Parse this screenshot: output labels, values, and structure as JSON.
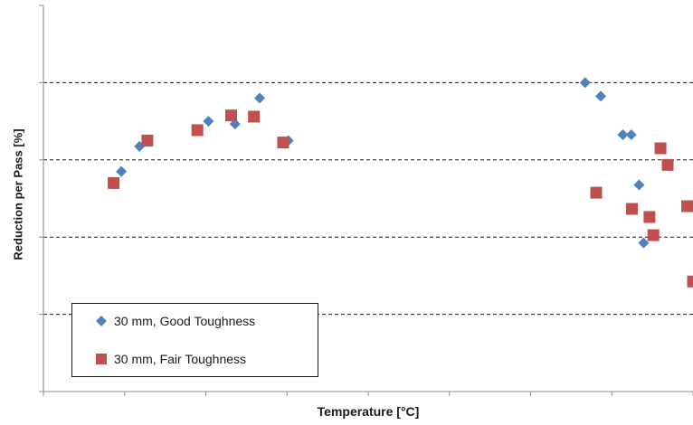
{
  "chart_data": {
    "type": "scatter",
    "xlabel": "Temperature [°C]",
    "ylabel": "Reduction per Pass [%]",
    "grid": "horizontal dashed",
    "legend_position": "bottom-left",
    "colors": {
      "good": "#4f81bd",
      "fair": "#c0504d"
    },
    "x_ticks": 8,
    "y_gridlines": 4,
    "series": [
      {
        "name": "30 mm, Good Toughness",
        "marker": "diamond",
        "points": [
          [
            0.12,
            0.57
          ],
          [
            0.148,
            0.635
          ],
          [
            0.254,
            0.7
          ],
          [
            0.295,
            0.693
          ],
          [
            0.333,
            0.76
          ],
          [
            0.377,
            0.65
          ],
          [
            0.834,
            0.8
          ],
          [
            0.858,
            0.765
          ],
          [
            0.892,
            0.665
          ],
          [
            0.905,
            0.665
          ],
          [
            0.917,
            0.535
          ],
          [
            0.924,
            0.385
          ]
        ]
      },
      {
        "name": "30 mm, Fair Toughness",
        "marker": "square",
        "points": [
          [
            0.108,
            0.54
          ],
          [
            0.16,
            0.65
          ],
          [
            0.237,
            0.677
          ],
          [
            0.289,
            0.715
          ],
          [
            0.324,
            0.712
          ],
          [
            0.369,
            0.645
          ],
          [
            0.851,
            0.515
          ],
          [
            0.906,
            0.473
          ],
          [
            0.933,
            0.452
          ],
          [
            0.939,
            0.405
          ],
          [
            0.95,
            0.63
          ],
          [
            0.961,
            0.587
          ],
          [
            0.991,
            0.48
          ],
          [
            1.0,
            0.285
          ]
        ]
      }
    ]
  }
}
